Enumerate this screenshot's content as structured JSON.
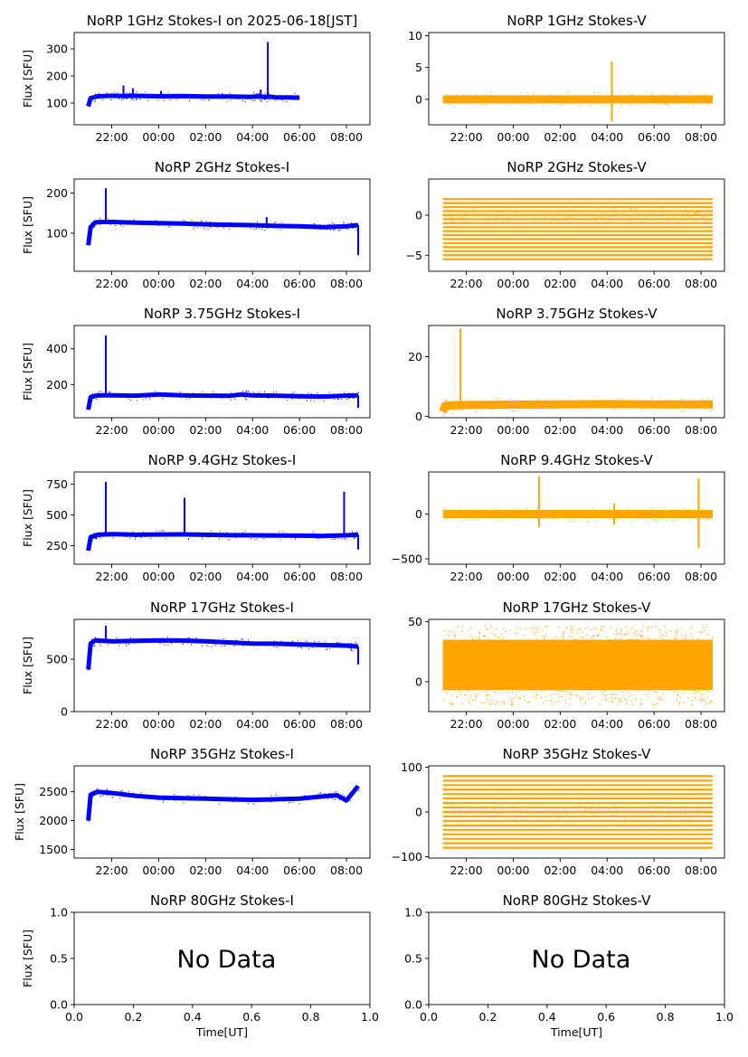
{
  "colors": {
    "stokes_i": "#0000ff",
    "stokes_v": "#ffa500",
    "axis": "#000000"
  },
  "time_ticks": [
    "22:00",
    "00:00",
    "02:00",
    "04:00",
    "06:00",
    "08:00"
  ],
  "time_tick_hours": [
    22,
    24,
    26,
    28,
    30,
    32
  ],
  "chart_data": [
    {
      "type": "scatter",
      "title": "NoRP 1GHz Stokes-I on 2025-06-18[JST]",
      "ylabel": "Flux [SFU]",
      "xlim": [
        20.4,
        33.0
      ],
      "ylim": [
        20,
        360
      ],
      "yticks": [
        100,
        200,
        300
      ],
      "xticks": [
        "22:00",
        "00:00",
        "02:00",
        "04:00",
        "06:00",
        "08:00"
      ],
      "series": [
        {
          "color": "#0000ff",
          "x": [
            21.0,
            21.1,
            21.4,
            22.0,
            22.5,
            22.9,
            23.5,
            24.1,
            25.0,
            26.0,
            27.0,
            27.9,
            28.3,
            28.5,
            28.7,
            29.0,
            29.5,
            30.0
          ],
          "y": [
            88,
            118,
            125,
            127,
            126,
            127,
            126,
            125,
            126,
            124,
            124,
            123,
            125,
            122,
            124,
            121,
            121,
            120
          ]
        }
      ],
      "spikes": [
        [
          22.5,
          165
        ],
        [
          22.9,
          155
        ],
        [
          24.1,
          145
        ],
        [
          28.35,
          150
        ],
        [
          28.65,
          325
        ]
      ]
    },
    {
      "type": "scatter",
      "title": "NoRP 1GHz Stokes-V",
      "ylabel": "",
      "xlim": [
        20.4,
        33.0
      ],
      "ylim": [
        -4,
        10.5
      ],
      "yticks": [
        0,
        5,
        10
      ],
      "xticks": [
        "22:00",
        "00:00",
        "02:00",
        "04:00",
        "06:00",
        "08:00"
      ],
      "series": [
        {
          "color": "#ffa500",
          "x": [
            21.0,
            24.0,
            27.0,
            30.0,
            32.5
          ],
          "y": [
            0,
            0,
            0,
            0,
            0
          ]
        }
      ],
      "spikes": [
        [
          28.2,
          6
        ],
        [
          28.2,
          -3.5
        ]
      ]
    },
    {
      "type": "scatter",
      "title": "NoRP 2GHz Stokes-I",
      "ylabel": "Flux [SFU]",
      "xlim": [
        20.4,
        33.0
      ],
      "ylim": [
        5,
        235
      ],
      "yticks": [
        100,
        200
      ],
      "xticks": [
        "22:00",
        "00:00",
        "02:00",
        "04:00",
        "06:00",
        "08:00"
      ],
      "series": [
        {
          "color": "#0000ff",
          "x": [
            21.0,
            21.1,
            21.3,
            21.6,
            22.0,
            23.0,
            24.0,
            25.0,
            26.0,
            27.0,
            28.0,
            29.0,
            30.0,
            31.0,
            32.0,
            32.5
          ],
          "y": [
            70,
            115,
            127,
            128,
            128,
            126,
            125,
            124,
            122,
            121,
            120,
            118,
            117,
            115,
            117,
            120
          ]
        }
      ],
      "spikes": [
        [
          21.75,
          212
        ],
        [
          28.6,
          140
        ],
        [
          32.5,
          45
        ]
      ]
    },
    {
      "type": "scatter",
      "title": "NoRP 2GHz Stokes-V",
      "ylabel": "",
      "xlim": [
        20.4,
        33.0
      ],
      "ylim": [
        -7,
        4.5
      ],
      "yticks": [
        -5,
        0
      ],
      "xticks": [
        "22:00",
        "00:00",
        "02:00",
        "04:00",
        "06:00",
        "08:00"
      ],
      "series": [
        {
          "color": "#ffa500",
          "x": [
            21.0,
            24.0,
            27.0,
            30.0,
            32.5
          ],
          "y": [
            0,
            0,
            0,
            0,
            0
          ]
        }
      ],
      "levels": [
        -5.5,
        -5,
        -4.5,
        -4,
        -3.5,
        -3,
        -2.5,
        -2,
        -1.5,
        -1,
        -0.5,
        0,
        0.5,
        1,
        1.5,
        2
      ]
    },
    {
      "type": "scatter",
      "title": "NoRP 3.75GHz Stokes-I",
      "ylabel": "Flux [SFU]",
      "xlim": [
        20.4,
        33.0
      ],
      "ylim": [
        15,
        530
      ],
      "yticks": [
        200,
        400
      ],
      "xticks": [
        "22:00",
        "00:00",
        "02:00",
        "04:00",
        "06:00",
        "08:00"
      ],
      "series": [
        {
          "color": "#0000ff",
          "x": [
            21.0,
            21.1,
            21.4,
            22.0,
            23.0,
            24.0,
            25.0,
            26.0,
            27.0,
            27.5,
            28.0,
            29.0,
            30.0,
            31.0,
            32.0,
            32.5
          ],
          "y": [
            60,
            130,
            140,
            140,
            138,
            145,
            140,
            138,
            137,
            145,
            140,
            138,
            135,
            133,
            138,
            140
          ]
        }
      ],
      "spikes": [
        [
          21.75,
          475
        ],
        [
          32.5,
          70
        ]
      ]
    },
    {
      "type": "scatter",
      "title": "NoRP 3.75GHz Stokes-V",
      "ylabel": "",
      "xlim": [
        20.4,
        33.0
      ],
      "ylim": [
        -0.5,
        30.5
      ],
      "yticks": [
        0,
        20
      ],
      "xticks": [
        "22:00",
        "00:00",
        "02:00",
        "04:00",
        "06:00",
        "08:00"
      ],
      "series": [
        {
          "color": "#ffa500",
          "x": [
            21.0,
            21.1,
            22.0,
            24.0,
            26.0,
            28.0,
            30.0,
            32.0,
            32.5
          ],
          "y": [
            1.5,
            3.5,
            3.8,
            3.9,
            4.0,
            4.1,
            4.0,
            4.0,
            4.0
          ]
        }
      ],
      "spikes": [
        [
          21.75,
          29.5
        ]
      ]
    },
    {
      "type": "scatter",
      "title": "NoRP 9.4GHz Stokes-I",
      "ylabel": "Flux [SFU]",
      "xlim": [
        20.4,
        33.0
      ],
      "ylim": [
        100,
        850
      ],
      "yticks": [
        250,
        500,
        750
      ],
      "xticks": [
        "22:00",
        "00:00",
        "02:00",
        "04:00",
        "06:00",
        "08:00"
      ],
      "series": [
        {
          "color": "#0000ff",
          "x": [
            21.0,
            21.1,
            21.4,
            22.0,
            23.0,
            24.0,
            25.0,
            26.0,
            27.0,
            28.0,
            29.0,
            30.0,
            31.0,
            32.0,
            32.5
          ],
          "y": [
            210,
            320,
            340,
            345,
            340,
            342,
            343,
            340,
            336,
            335,
            333,
            332,
            330,
            335,
            340
          ]
        }
      ],
      "spikes": [
        [
          21.75,
          770
        ],
        [
          25.1,
          640
        ],
        [
          31.9,
          690
        ],
        [
          32.5,
          220
        ]
      ]
    },
    {
      "type": "scatter",
      "title": "NoRP 9.4GHz Stokes-V",
      "ylabel": "",
      "xlim": [
        20.4,
        33.0
      ],
      "ylim": [
        -560,
        470
      ],
      "yticks": [
        -500,
        0
      ],
      "xticks": [
        "22:00",
        "00:00",
        "02:00",
        "04:00",
        "06:00",
        "08:00"
      ],
      "series": [
        {
          "color": "#ffa500",
          "x": [
            21.0,
            24.0,
            27.0,
            30.0,
            32.5
          ],
          "y": [
            0,
            0,
            0,
            0,
            0
          ]
        }
      ],
      "spikes": [
        [
          25.1,
          420
        ],
        [
          25.1,
          -150
        ],
        [
          31.9,
          400
        ],
        [
          31.9,
          -380
        ],
        [
          28.3,
          120
        ],
        [
          28.3,
          -120
        ]
      ]
    },
    {
      "type": "scatter",
      "title": "NoRP 17GHz Stokes-I",
      "ylabel": "Flux [SFU]",
      "xlim": [
        20.4,
        33.0
      ],
      "ylim": [
        0,
        880
      ],
      "yticks": [
        0,
        500
      ],
      "xticks": [
        "22:00",
        "00:00",
        "02:00",
        "04:00",
        "06:00",
        "08:00"
      ],
      "series": [
        {
          "color": "#0000ff",
          "x": [
            21.0,
            21.1,
            21.3,
            22.0,
            23.0,
            24.0,
            25.0,
            26.0,
            27.0,
            28.0,
            29.0,
            30.0,
            31.0,
            32.0,
            32.5
          ],
          "y": [
            400,
            650,
            680,
            670,
            675,
            680,
            678,
            670,
            660,
            650,
            648,
            640,
            635,
            630,
            620
          ]
        }
      ],
      "spikes": [
        [
          21.75,
          820
        ],
        [
          32.5,
          450
        ]
      ]
    },
    {
      "type": "scatter",
      "title": "NoRP 17GHz Stokes-V",
      "ylabel": "",
      "xlim": [
        20.4,
        33.0
      ],
      "ylim": [
        -25,
        52
      ],
      "yticks": [
        0,
        50
      ],
      "xticks": [
        "22:00",
        "00:00",
        "02:00",
        "04:00",
        "06:00",
        "08:00"
      ],
      "series": [
        {
          "color": "#ffa500",
          "x": [
            21.0,
            24.0,
            27.0,
            30.0,
            32.5
          ],
          "y": [
            0,
            0,
            0,
            0,
            0
          ]
        }
      ],
      "band": [
        -7,
        35
      ]
    },
    {
      "type": "scatter",
      "title": "NoRP 35GHz Stokes-I",
      "ylabel": "Flux [SFU]",
      "xlim": [
        20.4,
        33.0
      ],
      "ylim": [
        1350,
        2950
      ],
      "yticks": [
        1500,
        2000,
        2500
      ],
      "xticks": [
        "22:00",
        "00:00",
        "02:00",
        "04:00",
        "06:00",
        "08:00"
      ],
      "series": [
        {
          "color": "#0000ff",
          "x": [
            21.0,
            21.1,
            21.4,
            22.0,
            23.0,
            24.0,
            25.0,
            26.0,
            27.0,
            28.0,
            29.0,
            30.0,
            31.0,
            31.6,
            32.0,
            32.5
          ],
          "y": [
            2000,
            2450,
            2500,
            2480,
            2430,
            2400,
            2390,
            2380,
            2370,
            2360,
            2370,
            2380,
            2420,
            2440,
            2350,
            2600
          ]
        }
      ]
    },
    {
      "type": "scatter",
      "title": "NoRP 35GHz Stokes-V",
      "ylabel": "",
      "xlim": [
        20.4,
        33.0
      ],
      "ylim": [
        -103,
        103
      ],
      "yticks": [
        -100,
        0,
        100
      ],
      "xticks": [
        "22:00",
        "00:00",
        "02:00",
        "04:00",
        "06:00",
        "08:00"
      ],
      "series": [
        {
          "color": "#ffa500",
          "x": [
            21.0,
            24.0,
            27.0,
            30.0,
            32.5
          ],
          "y": [
            0,
            0,
            0,
            0,
            0
          ]
        }
      ],
      "levels": [
        -80,
        -70,
        -60,
        -50,
        -40,
        -30,
        -20,
        -10,
        0,
        10,
        20,
        30,
        40,
        50,
        60,
        70,
        80
      ]
    },
    {
      "type": "scatter",
      "title": "NoRP 80GHz Stokes-I",
      "ylabel": "Flux [SFU]",
      "xlabel": "Time[UT]",
      "xlim": [
        0,
        1
      ],
      "ylim": [
        0,
        1
      ],
      "yticks": [
        0.0,
        0.5,
        1.0
      ],
      "xticks": [
        0.0,
        0.2,
        0.4,
        0.6,
        0.8,
        1.0
      ],
      "annotation": "No Data",
      "series": []
    },
    {
      "type": "scatter",
      "title": "NoRP 80GHz Stokes-V",
      "ylabel": "",
      "xlabel": "Time[UT]",
      "xlim": [
        0,
        1
      ],
      "ylim": [
        0,
        1
      ],
      "yticks": [
        0.0,
        0.5,
        1.0
      ],
      "xticks": [
        0.0,
        0.2,
        0.4,
        0.6,
        0.8,
        1.0
      ],
      "annotation": "No Data",
      "series": []
    }
  ]
}
